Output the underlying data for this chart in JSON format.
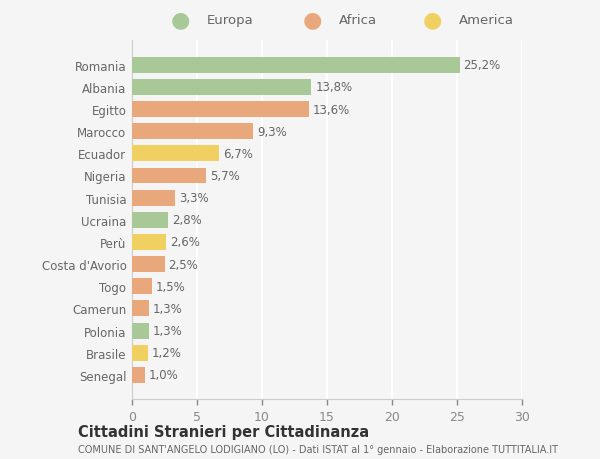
{
  "countries": [
    "Romania",
    "Albania",
    "Egitto",
    "Marocco",
    "Ecuador",
    "Nigeria",
    "Tunisia",
    "Ucraina",
    "Perù",
    "Costa d'Avorio",
    "Togo",
    "Camerun",
    "Polonia",
    "Brasile",
    "Senegal"
  ],
  "values": [
    25.2,
    13.8,
    13.6,
    9.3,
    6.7,
    5.7,
    3.3,
    2.8,
    2.6,
    2.5,
    1.5,
    1.3,
    1.3,
    1.2,
    1.0
  ],
  "labels": [
    "25,2%",
    "13,8%",
    "13,6%",
    "9,3%",
    "6,7%",
    "5,7%",
    "3,3%",
    "2,8%",
    "2,6%",
    "2,5%",
    "1,5%",
    "1,3%",
    "1,3%",
    "1,2%",
    "1,0%"
  ],
  "continent": [
    "Europa",
    "Europa",
    "Africa",
    "Africa",
    "America",
    "Africa",
    "Africa",
    "Europa",
    "America",
    "Africa",
    "Africa",
    "Africa",
    "Europa",
    "America",
    "Africa"
  ],
  "colors": {
    "Europa": "#a8c897",
    "Africa": "#e8a87c",
    "America": "#f0d060"
  },
  "xlim": [
    0,
    30
  ],
  "xticks": [
    0,
    5,
    10,
    15,
    20,
    25,
    30
  ],
  "title": "Cittadini Stranieri per Cittadinanza",
  "subtitle": "COMUNE DI SANT'ANGELO LODIGIANO (LO) - Dati ISTAT al 1° gennaio - Elaborazione TUTTITALIA.IT",
  "background_color": "#f5f5f5",
  "plot_bg_color": "#f5f5f5",
  "grid_color": "#ffffff",
  "bar_height": 0.72,
  "label_fontsize": 8.5,
  "ytick_fontsize": 8.5,
  "xtick_fontsize": 9
}
